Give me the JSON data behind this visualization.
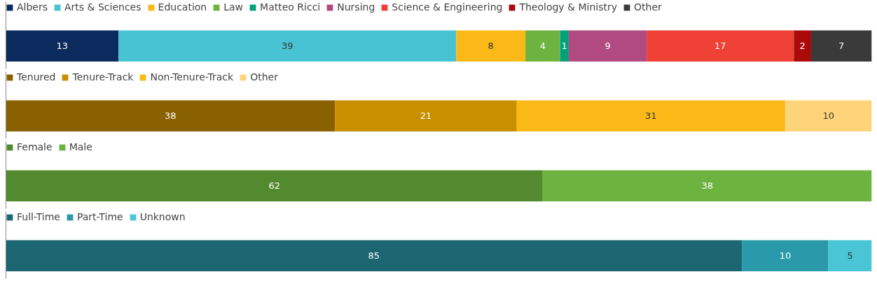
{
  "chart_data": [
    {
      "type": "bar",
      "stacked": true,
      "orientation": "horizontal",
      "categories": [
        null
      ],
      "xlim": [
        0,
        100
      ],
      "tick_labels": false,
      "data_labels": true,
      "legend": "top left",
      "grid": false,
      "series": [
        {
          "name": "Albers",
          "color": "#0b2a5e",
          "values": [
            13
          ]
        },
        {
          "name": "Arts & Sciences",
          "color": "#48c3d4",
          "values": [
            39
          ]
        },
        {
          "name": "Education",
          "color": "#fbb917",
          "values": [
            8
          ]
        },
        {
          "name": "Law",
          "color": "#6db33f",
          "values": [
            4
          ]
        },
        {
          "name": "Matteo Ricci",
          "color": "#00a07a",
          "values": [
            1
          ]
        },
        {
          "name": "Nursing",
          "color": "#b04a80",
          "values": [
            9
          ]
        },
        {
          "name": "Science & Engineering",
          "color": "#ef4136",
          "values": [
            17
          ]
        },
        {
          "name": "Theology & Ministry",
          "color": "#aa0a0a",
          "values": [
            2
          ]
        },
        {
          "name": "Other",
          "color": "#3a3a3a",
          "values": [
            7
          ]
        }
      ]
    },
    {
      "type": "bar",
      "stacked": true,
      "orientation": "horizontal",
      "categories": [
        null
      ],
      "xlim": [
        0,
        100
      ],
      "tick_labels": false,
      "data_labels": true,
      "legend": "top left",
      "grid": false,
      "series": [
        {
          "name": "Tenured",
          "color": "#8a6100",
          "values": [
            38
          ]
        },
        {
          "name": "Tenure-Track",
          "color": "#c98f00",
          "values": [
            21
          ]
        },
        {
          "name": "Non-Tenure-Track",
          "color": "#fbb917",
          "values": [
            31
          ]
        },
        {
          "name": "Other",
          "color": "#fed478",
          "values": [
            10
          ]
        }
      ]
    },
    {
      "type": "bar",
      "stacked": true,
      "orientation": "horizontal",
      "categories": [
        null
      ],
      "xlim": [
        0,
        100
      ],
      "tick_labels": false,
      "data_labels": true,
      "legend": "top left",
      "grid": false,
      "series": [
        {
          "name": "Female",
          "color": "#548a2f",
          "values": [
            62
          ]
        },
        {
          "name": "Male",
          "color": "#6db33f",
          "values": [
            38
          ]
        }
      ]
    },
    {
      "type": "bar",
      "stacked": true,
      "orientation": "horizontal",
      "categories": [
        null
      ],
      "xlim": [
        0,
        100
      ],
      "tick_labels": false,
      "data_labels": true,
      "legend": "top left",
      "grid": false,
      "series": [
        {
          "name": "Full-Time",
          "color": "#1c6672",
          "values": [
            85
          ]
        },
        {
          "name": "Part-Time",
          "color": "#2a9aab",
          "values": [
            10
          ]
        },
        {
          "name": "Unknown",
          "color": "#49c5d6",
          "values": [
            5
          ]
        }
      ]
    }
  ]
}
